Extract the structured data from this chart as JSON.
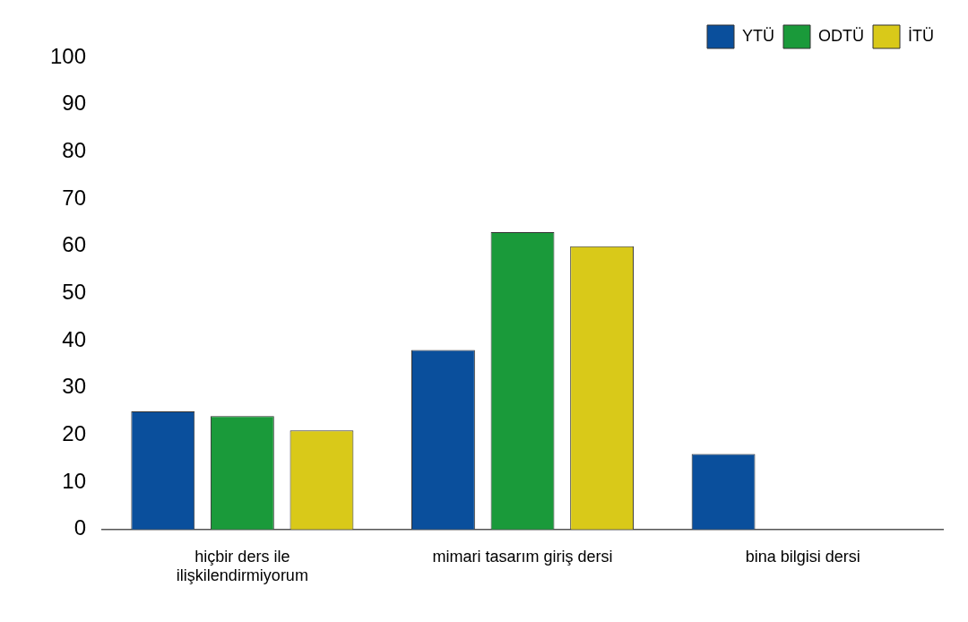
{
  "chart_data": {
    "type": "bar",
    "categories": [
      "hiçbir ders ile ilişkilendirmiyorum",
      "mimari tasarım giriş dersi",
      "bina bilgisi dersi"
    ],
    "series": [
      {
        "name": "YTÜ",
        "color": "#0a4f9c",
        "values": [
          25,
          38,
          16
        ]
      },
      {
        "name": "ODTÜ",
        "color": "#1a9a3a",
        "values": [
          24,
          63,
          0
        ]
      },
      {
        "name": "İTÜ",
        "color": "#d9c919",
        "values": [
          21,
          60,
          0
        ]
      }
    ],
    "ylim": [
      0,
      100
    ],
    "yticks": [
      0,
      10,
      20,
      30,
      40,
      50,
      60,
      70,
      80,
      90,
      100
    ],
    "grid": false,
    "legend": "top right"
  }
}
